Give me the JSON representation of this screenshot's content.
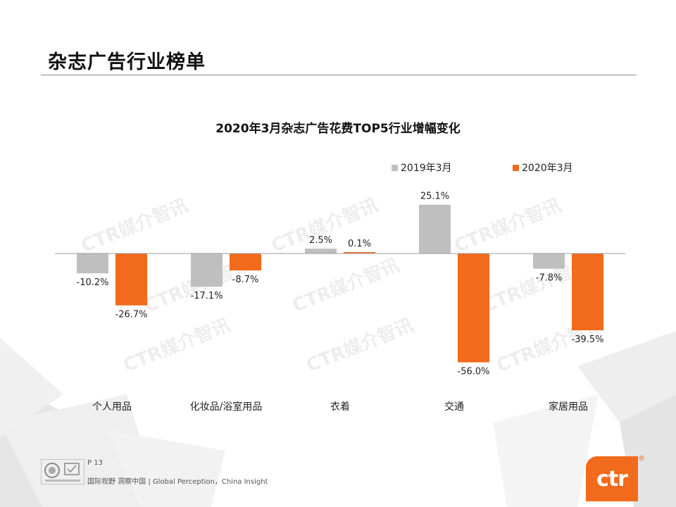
{
  "page": {
    "title": "杂志广告行业榜单",
    "page_number": "P 13",
    "tagline": "国际视野 洞察中国 | Global Perception，China Insight",
    "logo_text": "ctr",
    "logo_reg": "®",
    "watermark": "CTR媒介智讯"
  },
  "colors": {
    "series_2019": "#bfbfbf",
    "series_2020": "#f26a1b",
    "logo": "#f26a1b"
  },
  "chart_data": {
    "type": "bar",
    "title": "2020年3月杂志广告花费TOP5行业增幅变化",
    "categories": [
      "个人用品",
      "化妆品/浴室用品",
      "衣着",
      "交通",
      "家居用品"
    ],
    "series": [
      {
        "name": "2019年3月",
        "values": [
          -10.2,
          -17.1,
          2.5,
          25.1,
          -7.8
        ],
        "labels": [
          "-10.2%",
          "-17.1%",
          "2.5%",
          "25.1%",
          "-7.8%"
        ]
      },
      {
        "name": "2020年3月",
        "values": [
          -26.7,
          -8.7,
          0.1,
          -56.0,
          -39.5
        ],
        "labels": [
          "-26.7%",
          "-8.7%",
          "0.1%",
          "-56.0%",
          "-39.5%"
        ]
      }
    ],
    "unit": "%",
    "legend_position": "top-right",
    "grid": false,
    "ylim": [
      -60,
      30
    ]
  }
}
